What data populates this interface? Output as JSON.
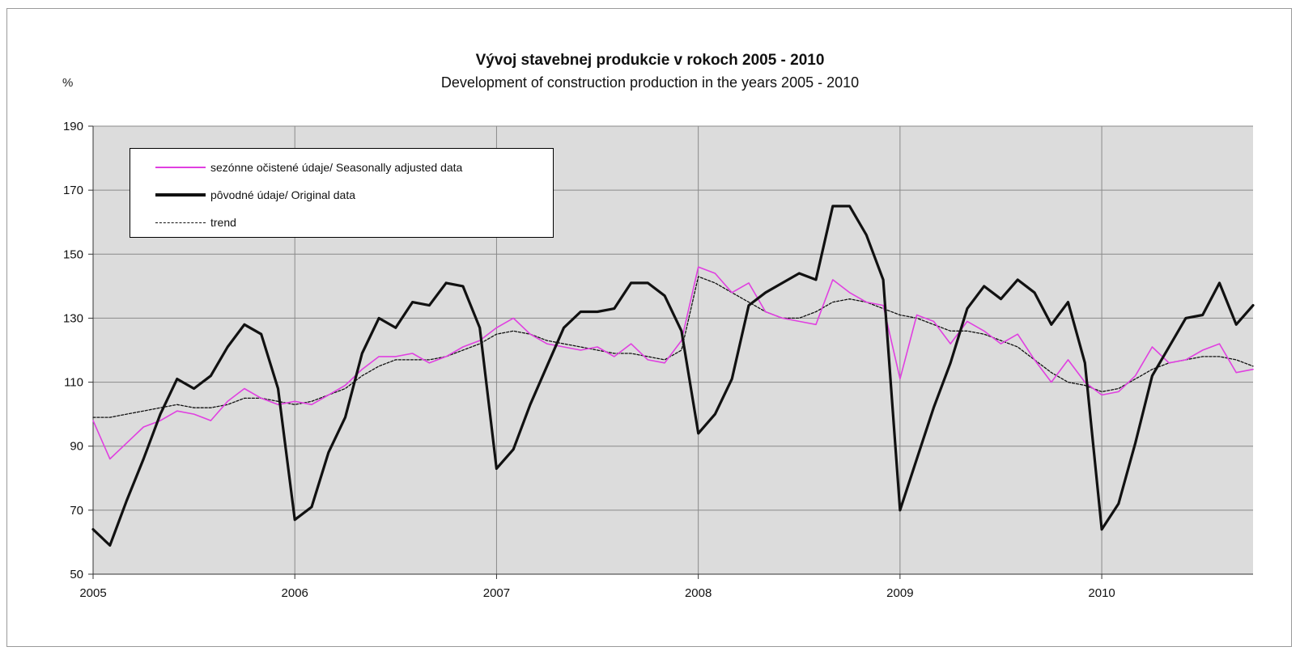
{
  "chart_data": {
    "type": "line",
    "title": "Vývoj stavebnej produkcie v rokoch 2005 - 2010",
    "subtitle": "Development of construction production in the years 2005 - 2010",
    "ylabel": "%",
    "ylim": [
      50,
      190
    ],
    "yticks": [
      50,
      70,
      90,
      110,
      130,
      150,
      170,
      190
    ],
    "xticks": [
      "2005",
      "2006",
      "2007",
      "2008",
      "2009",
      "2010"
    ],
    "xlim": [
      2005.0,
      2010.75
    ],
    "grid": true,
    "legend_position": "top-left",
    "x": [
      2005.0,
      2005.0833,
      2005.1667,
      2005.25,
      2005.3333,
      2005.4167,
      2005.5,
      2005.5833,
      2005.6667,
      2005.75,
      2005.8333,
      2005.9167,
      2006.0,
      2006.0833,
      2006.1667,
      2006.25,
      2006.3333,
      2006.4167,
      2006.5,
      2006.5833,
      2006.6667,
      2006.75,
      2006.8333,
      2006.9167,
      2007.0,
      2007.0833,
      2007.1667,
      2007.25,
      2007.3333,
      2007.4167,
      2007.5,
      2007.5833,
      2007.6667,
      2007.75,
      2007.8333,
      2007.9167,
      2008.0,
      2008.0833,
      2008.1667,
      2008.25,
      2008.3333,
      2008.4167,
      2008.5,
      2008.5833,
      2008.6667,
      2008.75,
      2008.8333,
      2008.9167,
      2009.0,
      2009.0833,
      2009.1667,
      2009.25,
      2009.3333,
      2009.4167,
      2009.5,
      2009.5833,
      2009.6667,
      2009.75,
      2009.8333,
      2009.9167,
      2010.0,
      2010.0833,
      2010.1667,
      2010.25,
      2010.3333,
      2010.4167,
      2010.5,
      2010.5833,
      2010.6667,
      2010.75
    ],
    "series": [
      {
        "name": "sezónne očistené údaje/ Seasonally adjusted data",
        "color": "#e040e0",
        "style": "thin",
        "values": [
          98,
          86,
          91,
          96,
          98,
          101,
          100,
          98,
          104,
          108,
          105,
          103,
          104,
          103,
          106,
          109,
          114,
          118,
          118,
          119,
          116,
          118,
          121,
          123,
          127,
          130,
          125,
          122,
          121,
          120,
          121,
          118,
          122,
          117,
          116,
          123,
          146,
          144,
          138,
          141,
          132,
          130,
          129,
          128,
          142,
          138,
          135,
          134,
          111,
          131,
          129,
          122,
          129,
          126,
          122,
          125,
          117,
          110,
          117,
          110,
          106,
          107,
          112,
          121,
          116,
          117,
          120,
          122,
          113,
          114
        ]
      },
      {
        "name": "pôvodné údaje/ Original data",
        "color": "#111111",
        "style": "thick",
        "values": [
          64,
          59,
          73,
          86,
          100,
          111,
          108,
          112,
          121,
          128,
          125,
          108,
          67,
          71,
          88,
          99,
          119,
          130,
          127,
          135,
          134,
          141,
          140,
          127,
          83,
          89,
          103,
          115,
          127,
          132,
          132,
          133,
          141,
          141,
          137,
          126,
          94,
          100,
          111,
          134,
          138,
          141,
          144,
          142,
          165,
          165,
          156,
          142,
          70,
          86,
          102,
          116,
          133,
          140,
          136,
          142,
          138,
          128,
          135,
          116,
          64,
          72,
          91,
          112,
          121,
          130,
          131,
          141,
          128,
          134
        ]
      },
      {
        "name": "trend",
        "color": "#111111",
        "style": "dotted",
        "values": [
          99,
          99,
          100,
          101,
          102,
          103,
          102,
          102,
          103,
          105,
          105,
          104,
          103,
          104,
          106,
          108,
          112,
          115,
          117,
          117,
          117,
          118,
          120,
          122,
          125,
          126,
          125,
          123,
          122,
          121,
          120,
          119,
          119,
          118,
          117,
          120,
          143,
          141,
          138,
          135,
          132,
          130,
          130,
          132,
          135,
          136,
          135,
          133,
          131,
          130,
          128,
          126,
          126,
          125,
          123,
          121,
          117,
          113,
          110,
          109,
          107,
          108,
          111,
          114,
          116,
          117,
          118,
          118,
          117,
          115
        ]
      }
    ]
  }
}
